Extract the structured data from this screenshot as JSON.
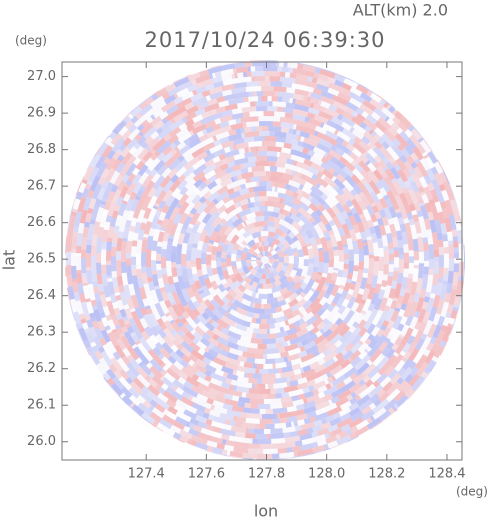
{
  "chart_data": {
    "type": "ppi",
    "title": "2017/10/24 06:39:30",
    "annotation": "ALT(km) 2.0",
    "xlabel": "lon",
    "ylabel": "lat",
    "xunit": "(deg)",
    "yunit": "(deg)",
    "xlim": [
      127.12,
      128.45
    ],
    "ylim": [
      25.95,
      27.04
    ],
    "xticks": [
      127.4,
      127.6,
      127.8,
      {
        "value": 128.0,
        "label": "128.0"
      },
      128.2,
      128.4
    ],
    "yticks": [
      {
        "value": 26.0,
        "label": "26.0"
      },
      26.1,
      26.2,
      26.3,
      26.4,
      26.5,
      26.6,
      26.7,
      26.8,
      26.9,
      {
        "value": 27.0,
        "label": "27.0"
      }
    ]
  }
}
